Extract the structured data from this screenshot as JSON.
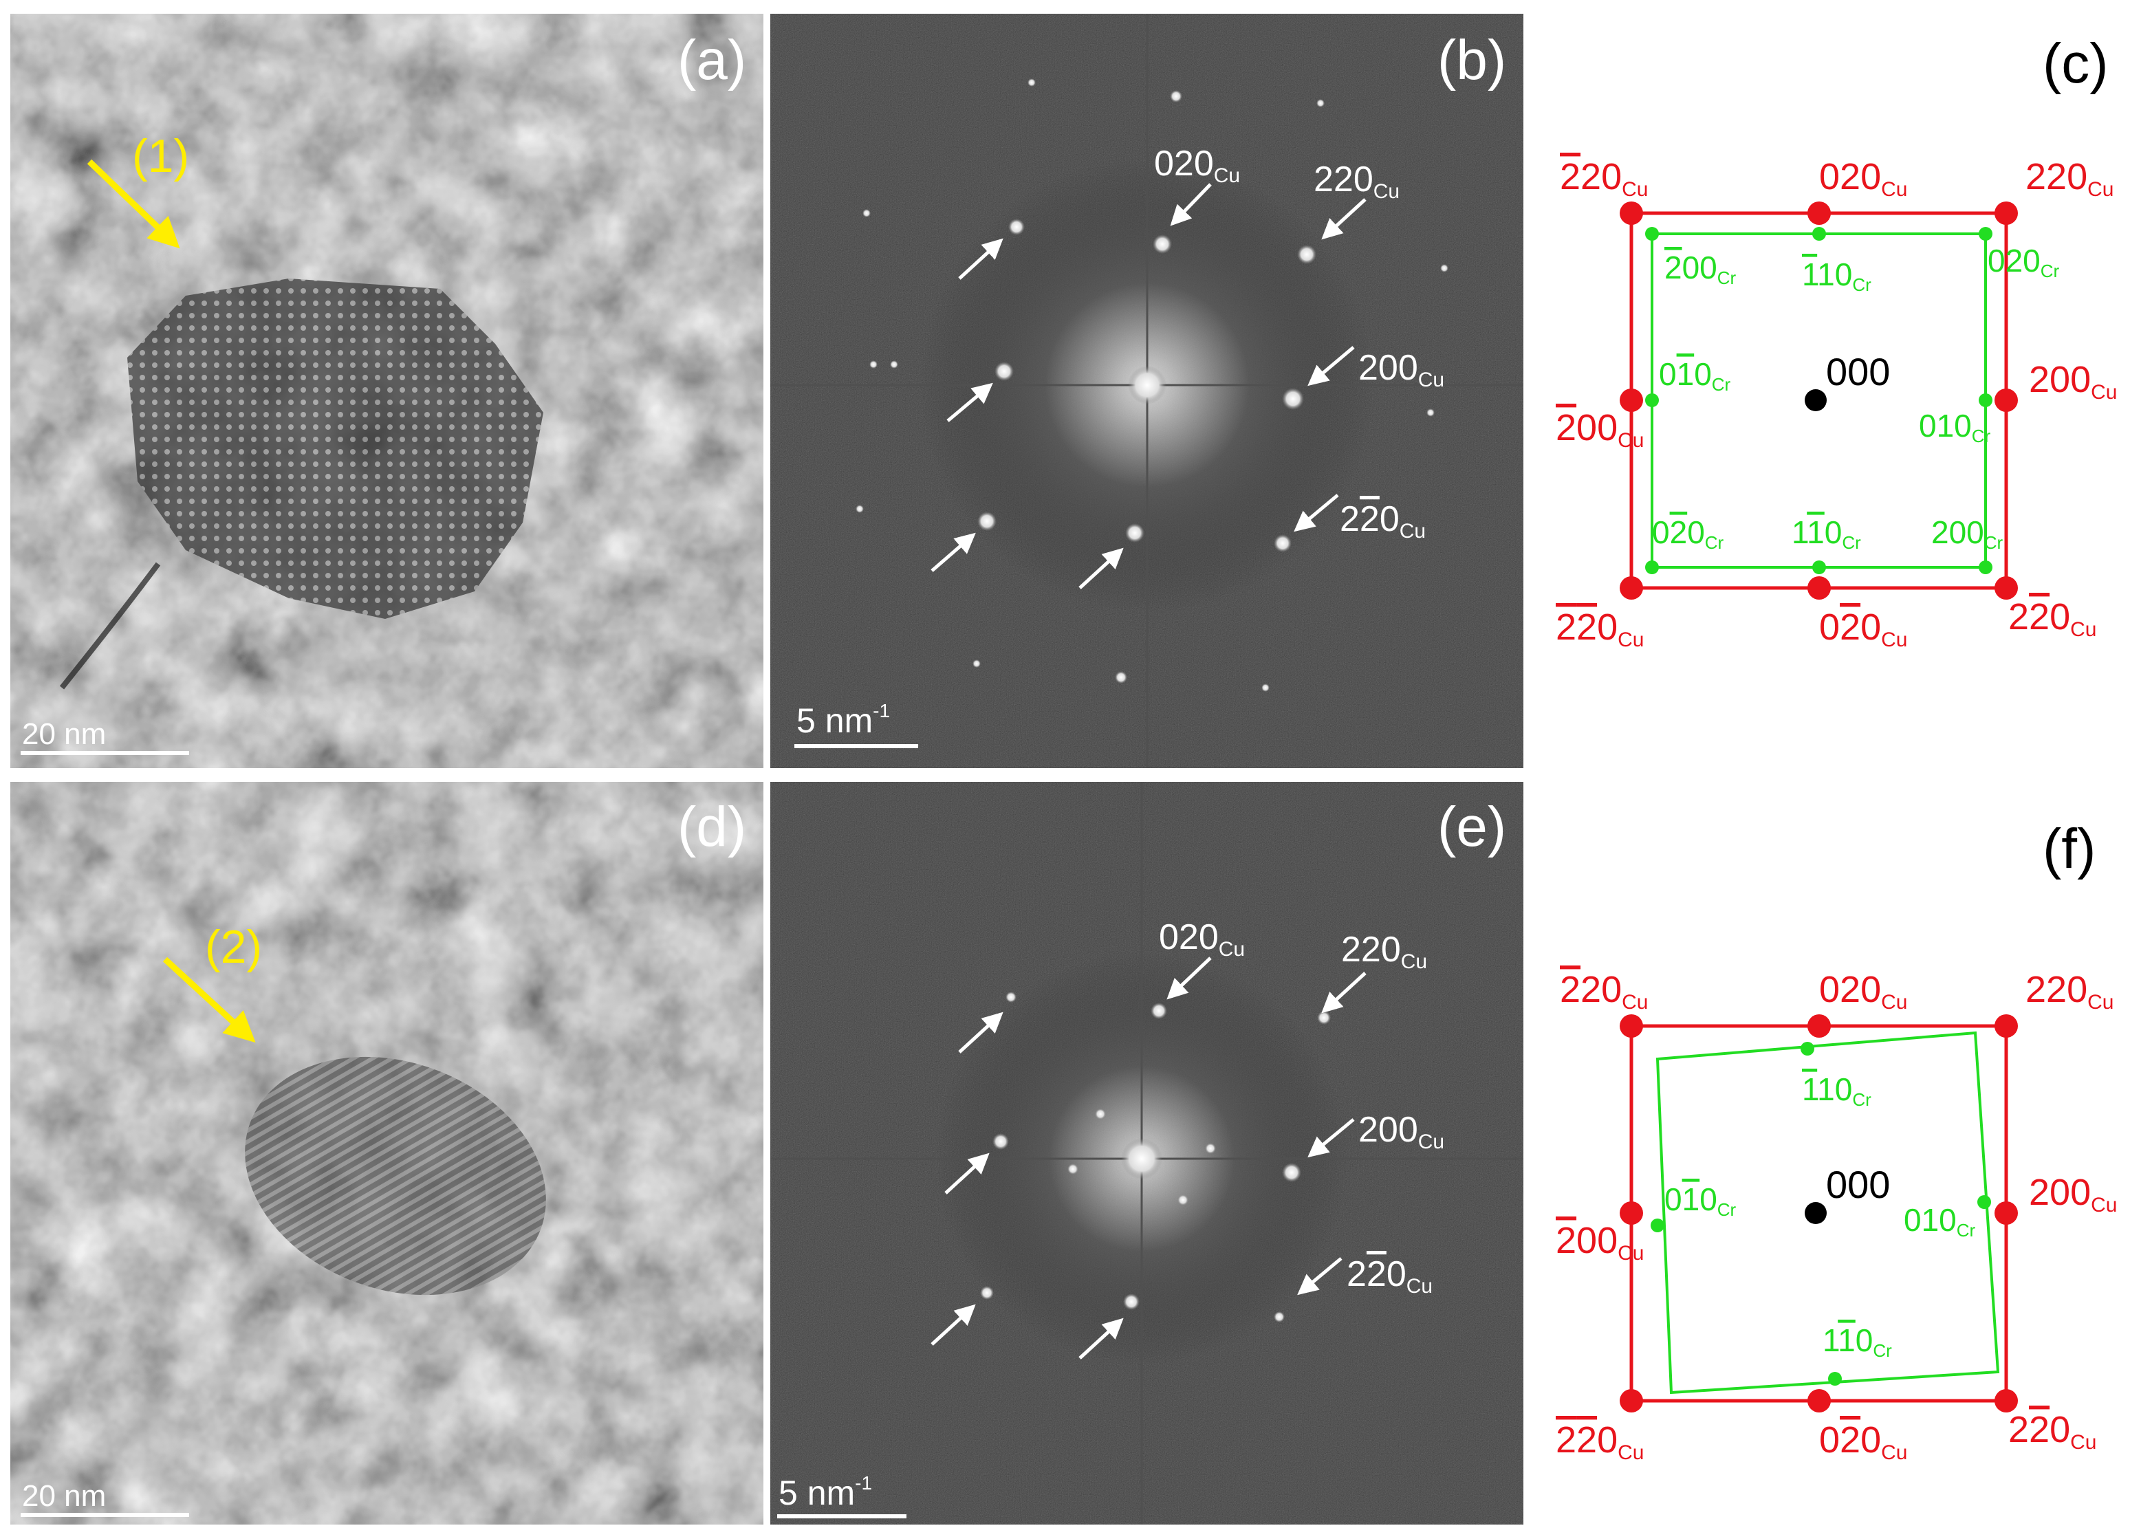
{
  "panels": {
    "a": {
      "label": "(a)",
      "marker": "(1)",
      "scalebar": "20 nm"
    },
    "b": {
      "label": "(b)",
      "scalebar_num": "5 nm",
      "scalebar_exp": "-1",
      "spots": {
        "g020": "020",
        "g220": "220",
        "g200": "200",
        "g2m20_a": "2",
        "g2m20_b": "2",
        "g2m20_c": "0"
      },
      "sub": "Cu"
    },
    "c": {
      "label": "(c)"
    },
    "d": {
      "label": "(d)",
      "marker": "(2)",
      "scalebar": "20 nm"
    },
    "e": {
      "label": "(e)",
      "scalebar_num": "5 nm",
      "scalebar_exp": "-1"
    },
    "f": {
      "label": "(f)"
    }
  },
  "diagram": {
    "origin": "000",
    "cu_sub": "Cu",
    "cr_sub": "Cr",
    "colors": {
      "cu": "#e8141c",
      "cr": "#22dd22",
      "origin": "#000000"
    }
  }
}
